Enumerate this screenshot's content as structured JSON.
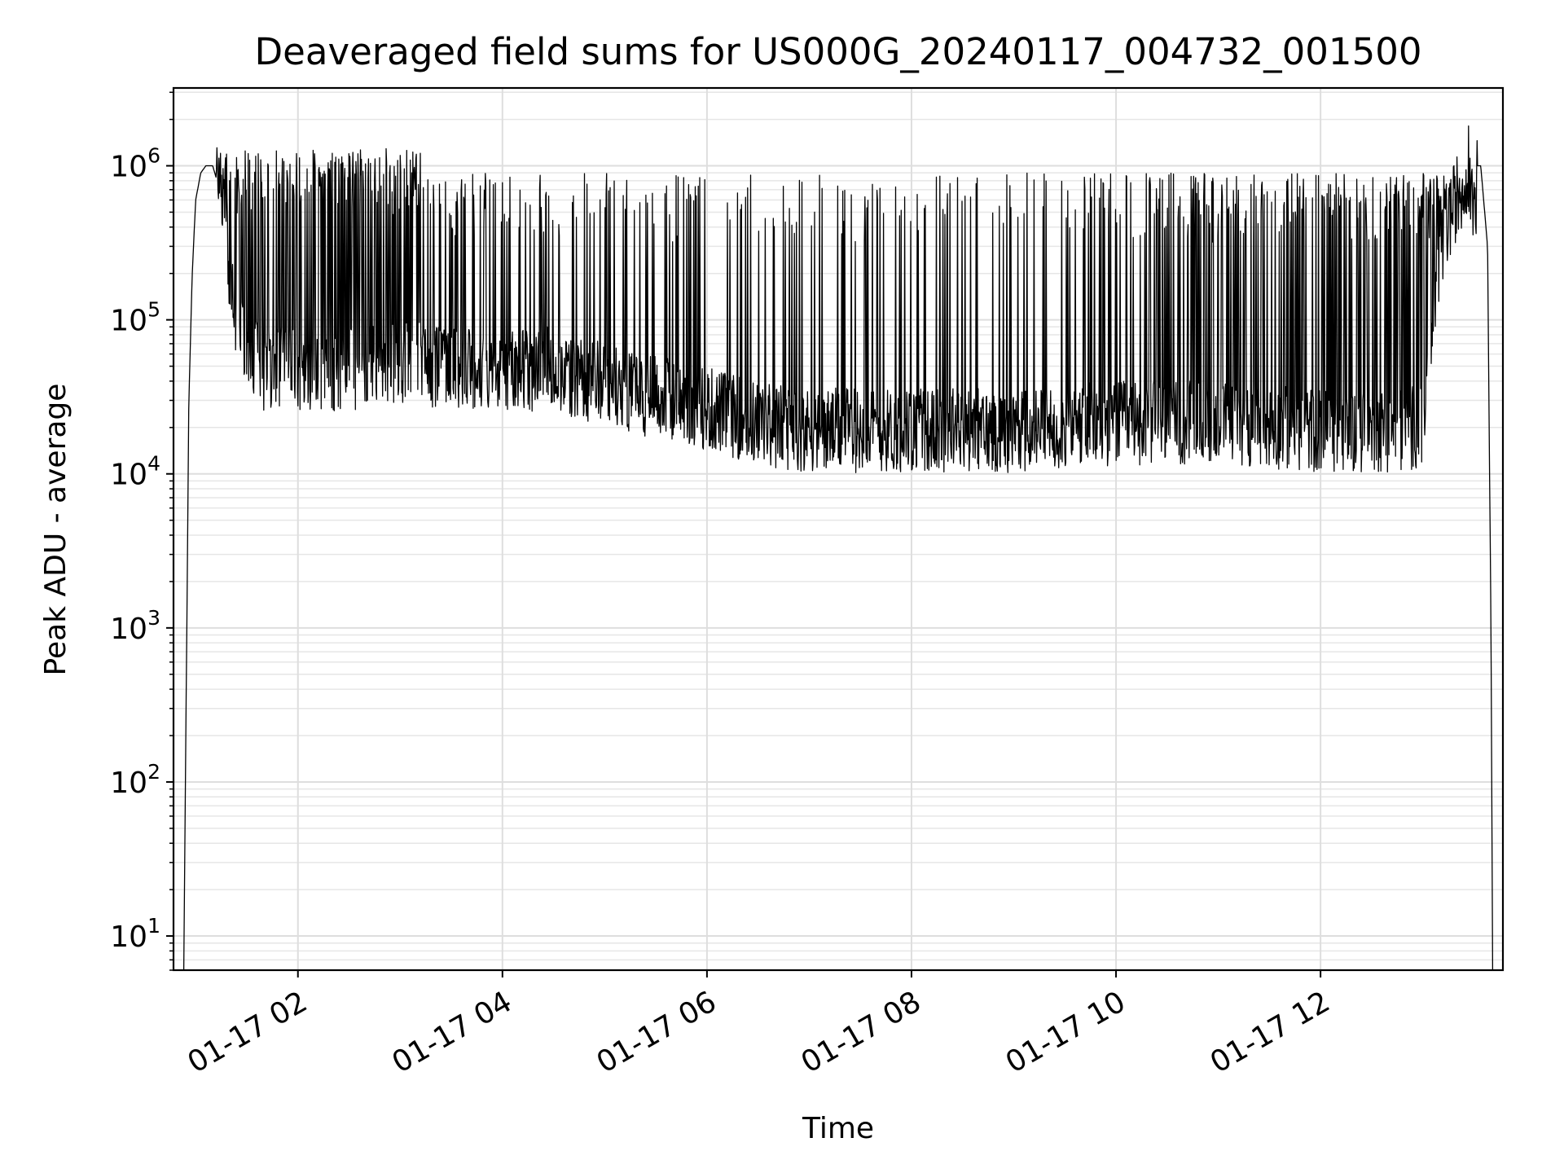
{
  "chart_data": {
    "type": "line",
    "title": "Deaveraged field sums for US000G_20240117_004732_001500",
    "xlabel": "Time",
    "ylabel": "Peak ADU - average",
    "yscale": "log",
    "ylim": [
      6,
      3200000
    ],
    "xlim": [
      "2024-01-17 00:47",
      "2024-01-17 13:47"
    ],
    "grid": true,
    "x_ticks": [
      {
        "t": "2024-01-17 02:00",
        "label": "01-17 02"
      },
      {
        "t": "2024-01-17 04:00",
        "label": "01-17 04"
      },
      {
        "t": "2024-01-17 06:00",
        "label": "01-17 06"
      },
      {
        "t": "2024-01-17 08:00",
        "label": "01-17 08"
      },
      {
        "t": "2024-01-17 10:00",
        "label": "01-17 10"
      },
      {
        "t": "2024-01-17 12:00",
        "label": "01-17 12"
      }
    ],
    "y_ticks": [
      {
        "value": 10,
        "base": "10",
        "exp": "1"
      },
      {
        "value": 100,
        "base": "10",
        "exp": "2"
      },
      {
        "value": 1000,
        "base": "10",
        "exp": "3"
      },
      {
        "value": 10000,
        "base": "10",
        "exp": "4"
      },
      {
        "value": 100000,
        "base": "10",
        "exp": "5"
      },
      {
        "value": 1000000,
        "base": "10",
        "exp": "6"
      }
    ],
    "series": [
      {
        "color": "#000000",
        "x": [
          "2024-01-17 00:53",
          "2024-01-17 00:54",
          "2024-01-17 00:56",
          "2024-01-17 00:58",
          "2024-01-17 01:00",
          "2024-01-17 01:03",
          "2024-01-17 01:06",
          "2024-01-17 01:10",
          "2024-01-17 01:14",
          "2024-01-17 01:18",
          "2024-01-17 01:24",
          "2024-01-17 01:30",
          "2024-01-17 01:40",
          "2024-01-17 02:00",
          "2024-01-17 02:30",
          "2024-01-17 03:00",
          "2024-01-17 03:30",
          "2024-01-17 04:00",
          "2024-01-17 04:30",
          "2024-01-17 05:00",
          "2024-01-17 05:30",
          "2024-01-17 06:00",
          "2024-01-17 06:30",
          "2024-01-17 07:00",
          "2024-01-17 08:00",
          "2024-01-17 09:00",
          "2024-01-17 10:00",
          "2024-01-17 11:00",
          "2024-01-17 12:00",
          "2024-01-17 12:50",
          "2024-01-17 13:00",
          "2024-01-17 13:05",
          "2024-01-17 13:12",
          "2024-01-17 13:20",
          "2024-01-17 13:28",
          "2024-01-17 13:34",
          "2024-01-17 13:38",
          "2024-01-17 13:40",
          "2024-01-17 13:41"
        ],
        "y": [
          6,
          100,
          30000,
          200000,
          600000,
          900000,
          1000000,
          1000000,
          700000,
          300000,
          100000,
          60000,
          45000,
          45000,
          45000,
          50000,
          45000,
          45000,
          45000,
          35000,
          30000,
          25000,
          20000,
          18000,
          18000,
          18000,
          20000,
          20000,
          18000,
          18000,
          20000,
          60000,
          300000,
          600000,
          1000000,
          1000000,
          300000,
          1000,
          6
        ]
      }
    ]
  }
}
